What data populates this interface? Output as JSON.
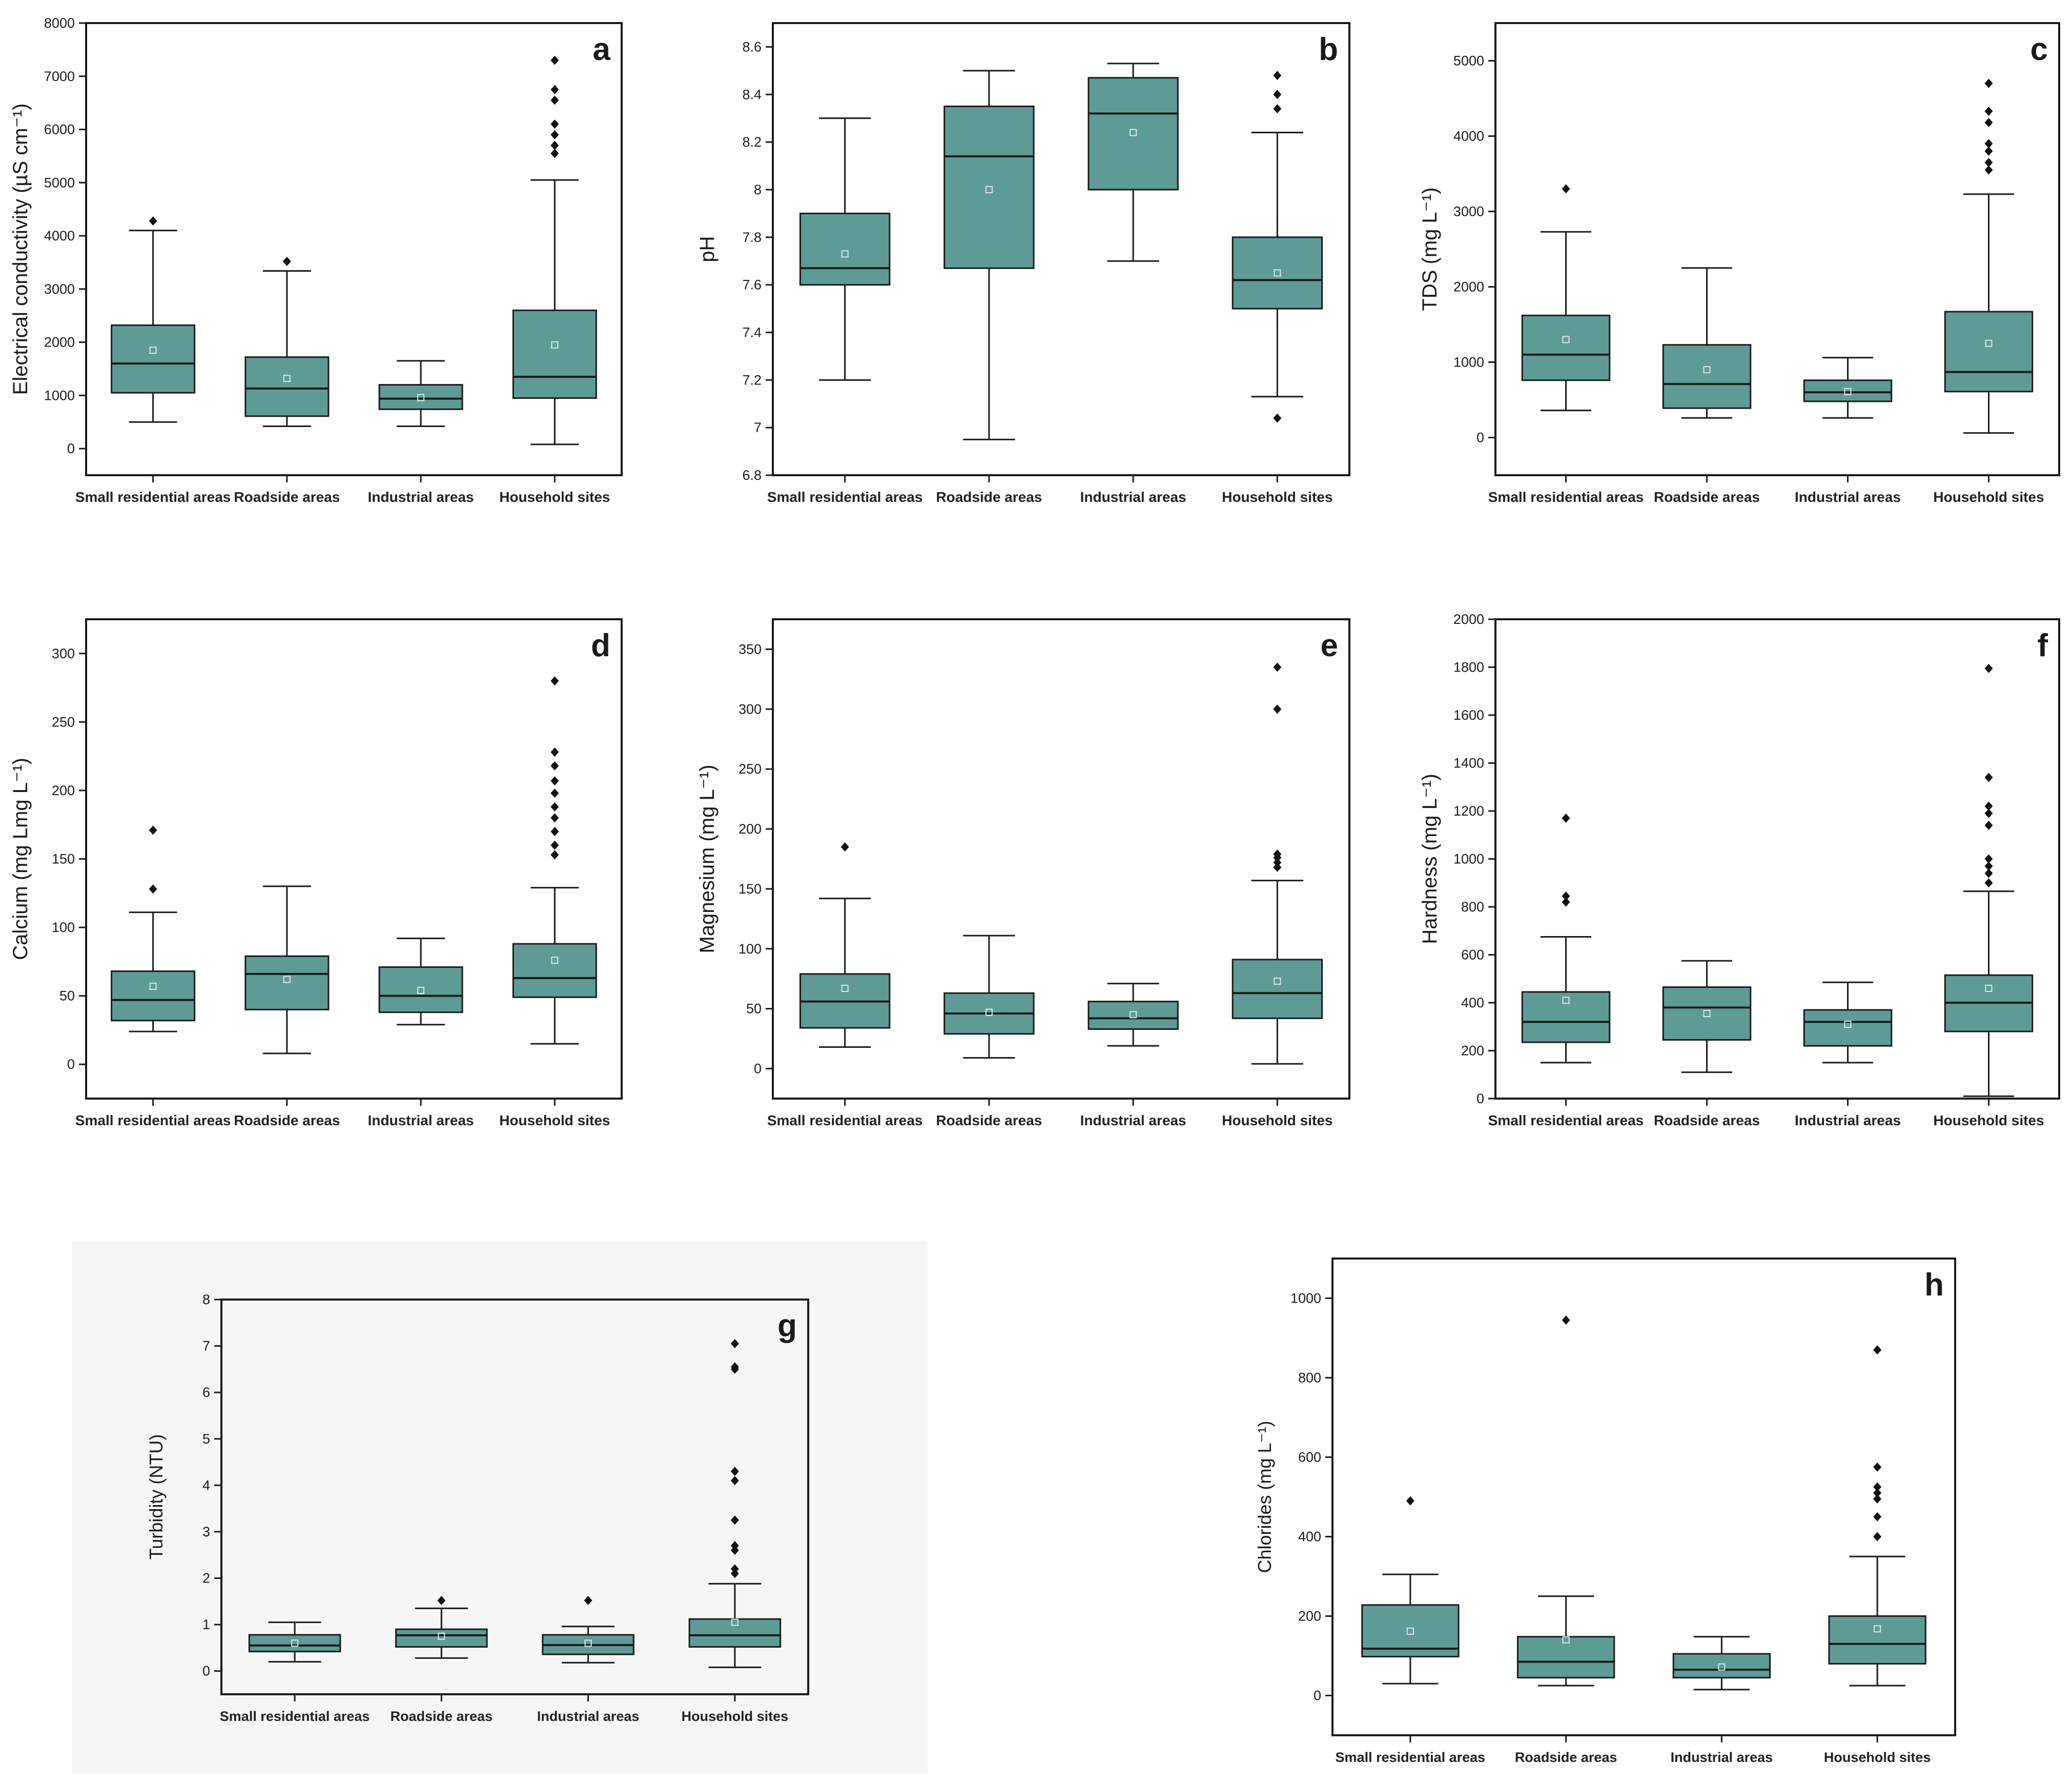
{
  "figure": {
    "categories": [
      "Small residential areas",
      "Roadside areas",
      "Industrial areas",
      "Household sites"
    ],
    "box_color": "#5f9b96",
    "outline_color": "#1a1a1a"
  },
  "chart_data": [
    {
      "type": "box",
      "panel_label": "a",
      "ylabel": "Electrical conductivity (µS cm⁻¹)",
      "ylim": [
        -500,
        8000
      ],
      "yticks": [
        0,
        1000,
        2000,
        3000,
        4000,
        5000,
        6000,
        7000,
        8000
      ],
      "categories": [
        "Small residential areas",
        "Roadside areas",
        "Industrial areas",
        "Household sites"
      ],
      "boxes": [
        {
          "whisker_low": 500,
          "q1": 1050,
          "median": 1600,
          "q3": 2320,
          "whisker_high": 4100,
          "mean": 1850,
          "outliers": [
            4280
          ]
        },
        {
          "whisker_low": 420,
          "q1": 610,
          "median": 1130,
          "q3": 1720,
          "whisker_high": 3340,
          "mean": 1320,
          "outliers": [
            3520
          ]
        },
        {
          "whisker_low": 420,
          "q1": 740,
          "median": 940,
          "q3": 1200,
          "whisker_high": 1650,
          "mean": 960,
          "outliers": []
        },
        {
          "whisker_low": 80,
          "q1": 950,
          "median": 1350,
          "q3": 2600,
          "whisker_high": 5050,
          "mean": 1950,
          "outliers": [
            5550,
            5700,
            5900,
            6100,
            6550,
            6750,
            7300
          ]
        }
      ]
    },
    {
      "type": "box",
      "panel_label": "b",
      "ylabel": "pH",
      "ylim": [
        6.8,
        8.7
      ],
      "yticks": [
        6.8,
        7.0,
        7.2,
        7.4,
        7.6,
        7.8,
        8.0,
        8.2,
        8.4,
        8.6
      ],
      "categories": [
        "Small residential areas",
        "Roadside areas",
        "Industrial areas",
        "Household sites"
      ],
      "boxes": [
        {
          "whisker_low": 7.2,
          "q1": 7.6,
          "median": 7.67,
          "q3": 7.9,
          "whisker_high": 8.3,
          "mean": 7.73,
          "outliers": []
        },
        {
          "whisker_low": 6.95,
          "q1": 7.67,
          "median": 8.14,
          "q3": 8.35,
          "whisker_high": 8.5,
          "mean": 8.0,
          "outliers": []
        },
        {
          "whisker_low": 7.7,
          "q1": 8.0,
          "median": 8.32,
          "q3": 8.47,
          "whisker_high": 8.53,
          "mean": 8.24,
          "outliers": []
        },
        {
          "whisker_low": 7.13,
          "q1": 7.5,
          "median": 7.62,
          "q3": 7.8,
          "whisker_high": 8.24,
          "mean": 7.65,
          "outliers": [
            7.04,
            8.34,
            8.4,
            8.48
          ]
        }
      ]
    },
    {
      "type": "box",
      "panel_label": "c",
      "ylabel": "TDS (mg L⁻¹)",
      "ylim": [
        -500,
        5500
      ],
      "yticks": [
        0,
        1000,
        2000,
        3000,
        4000,
        5000
      ],
      "categories": [
        "Small residential areas",
        "Roadside areas",
        "Industrial areas",
        "Household sites"
      ],
      "boxes": [
        {
          "whisker_low": 360,
          "q1": 760,
          "median": 1100,
          "q3": 1620,
          "whisker_high": 2730,
          "mean": 1300,
          "outliers": [
            3300
          ]
        },
        {
          "whisker_low": 260,
          "q1": 390,
          "median": 710,
          "q3": 1230,
          "whisker_high": 2250,
          "mean": 900,
          "outliers": []
        },
        {
          "whisker_low": 260,
          "q1": 480,
          "median": 600,
          "q3": 760,
          "whisker_high": 1060,
          "mean": 610,
          "outliers": []
        },
        {
          "whisker_low": 60,
          "q1": 610,
          "median": 870,
          "q3": 1670,
          "whisker_high": 3230,
          "mean": 1250,
          "outliers": [
            3550,
            3650,
            3800,
            3900,
            4180,
            4330,
            4700
          ]
        }
      ]
    },
    {
      "type": "box",
      "panel_label": "d",
      "ylabel": "Calcium (mg Lmg L⁻¹)",
      "ylim": [
        -25,
        325
      ],
      "yticks": [
        0,
        50,
        100,
        150,
        200,
        250,
        300
      ],
      "categories": [
        "Small residential areas",
        "Roadside areas",
        "Industrial areas",
        "Household sites"
      ],
      "boxes": [
        {
          "whisker_low": 24,
          "q1": 32,
          "median": 47,
          "q3": 68,
          "whisker_high": 111,
          "mean": 57,
          "outliers": [
            128,
            171
          ]
        },
        {
          "whisker_low": 8,
          "q1": 40,
          "median": 66,
          "q3": 79,
          "whisker_high": 130,
          "mean": 62,
          "outliers": []
        },
        {
          "whisker_low": 29,
          "q1": 38,
          "median": 50,
          "q3": 71,
          "whisker_high": 92,
          "mean": 54,
          "outliers": []
        },
        {
          "whisker_low": 15,
          "q1": 49,
          "median": 63,
          "q3": 88,
          "whisker_high": 129,
          "mean": 76,
          "outliers": [
            153,
            160,
            170,
            180,
            188,
            198,
            207,
            218,
            228,
            280
          ]
        }
      ]
    },
    {
      "type": "box",
      "panel_label": "e",
      "ylabel": "Magnesium (mg L⁻¹)",
      "ylim": [
        -25,
        375
      ],
      "yticks": [
        0,
        50,
        100,
        150,
        200,
        250,
        300,
        350
      ],
      "categories": [
        "Small residential areas",
        "Roadside areas",
        "Industrial areas",
        "Household sites"
      ],
      "boxes": [
        {
          "whisker_low": 18,
          "q1": 34,
          "median": 56,
          "q3": 79,
          "whisker_high": 142,
          "mean": 67,
          "outliers": [
            185
          ]
        },
        {
          "whisker_low": 9,
          "q1": 29,
          "median": 46,
          "q3": 63,
          "whisker_high": 111,
          "mean": 47,
          "outliers": []
        },
        {
          "whisker_low": 19,
          "q1": 33,
          "median": 42,
          "q3": 56,
          "whisker_high": 71,
          "mean": 45,
          "outliers": []
        },
        {
          "whisker_low": 4,
          "q1": 42,
          "median": 63,
          "q3": 91,
          "whisker_high": 157,
          "mean": 73,
          "outliers": [
            168,
            172,
            176,
            179,
            300,
            335
          ]
        }
      ]
    },
    {
      "type": "box",
      "panel_label": "f",
      "ylabel": "Hardness (mg L⁻¹)",
      "ylim": [
        0,
        2000
      ],
      "yticks": [
        0,
        200,
        400,
        600,
        800,
        1000,
        1200,
        1400,
        1600,
        1800,
        2000
      ],
      "categories": [
        "Small residential areas",
        "Roadside areas",
        "Industrial areas",
        "Household sites"
      ],
      "boxes": [
        {
          "whisker_low": 150,
          "q1": 235,
          "median": 320,
          "q3": 445,
          "whisker_high": 675,
          "mean": 410,
          "outliers": [
            820,
            845,
            1170
          ]
        },
        {
          "whisker_low": 110,
          "q1": 245,
          "median": 380,
          "q3": 465,
          "whisker_high": 575,
          "mean": 355,
          "outliers": []
        },
        {
          "whisker_low": 150,
          "q1": 220,
          "median": 320,
          "q3": 370,
          "whisker_high": 485,
          "mean": 310,
          "outliers": []
        },
        {
          "whisker_low": 10,
          "q1": 280,
          "median": 400,
          "q3": 515,
          "whisker_high": 865,
          "mean": 460,
          "outliers": [
            900,
            940,
            970,
            1000,
            1140,
            1190,
            1220,
            1340,
            1795
          ]
        }
      ]
    },
    {
      "type": "box",
      "panel_label": "g",
      "ylabel": "Turbidity (NTU)",
      "ylim": [
        -0.5,
        8
      ],
      "yticks": [
        0,
        1,
        2,
        3,
        4,
        5,
        6,
        7,
        8
      ],
      "categories": [
        "Small residential areas",
        "Roadside areas",
        "Industrial areas",
        "Household sites"
      ],
      "boxes": [
        {
          "whisker_low": 0.2,
          "q1": 0.42,
          "median": 0.55,
          "q3": 0.78,
          "whisker_high": 1.05,
          "mean": 0.6,
          "outliers": []
        },
        {
          "whisker_low": 0.28,
          "q1": 0.52,
          "median": 0.77,
          "q3": 0.9,
          "whisker_high": 1.35,
          "mean": 0.75,
          "outliers": [
            1.52
          ]
        },
        {
          "whisker_low": 0.18,
          "q1": 0.36,
          "median": 0.56,
          "q3": 0.78,
          "whisker_high": 0.96,
          "mean": 0.6,
          "outliers": [
            1.52
          ]
        },
        {
          "whisker_low": 0.08,
          "q1": 0.52,
          "median": 0.77,
          "q3": 1.12,
          "whisker_high": 1.88,
          "mean": 1.05,
          "outliers": [
            2.1,
            2.2,
            2.6,
            2.7,
            3.25,
            4.1,
            4.3,
            6.5,
            6.55,
            7.05
          ]
        }
      ]
    },
    {
      "type": "box",
      "panel_label": "h",
      "ylabel": "Chlorides (mg L⁻¹)",
      "ylim": [
        -100,
        1100
      ],
      "yticks": [
        0,
        200,
        400,
        600,
        800,
        1000
      ],
      "categories": [
        "Small residential areas",
        "Roadside areas",
        "Industrial areas",
        "Household sites"
      ],
      "boxes": [
        {
          "whisker_low": 30,
          "q1": 98,
          "median": 118,
          "q3": 228,
          "whisker_high": 305,
          "mean": 162,
          "outliers": [
            490
          ]
        },
        {
          "whisker_low": 25,
          "q1": 45,
          "median": 85,
          "q3": 148,
          "whisker_high": 250,
          "mean": 140,
          "outliers": [
            945
          ]
        },
        {
          "whisker_low": 15,
          "q1": 45,
          "median": 65,
          "q3": 105,
          "whisker_high": 148,
          "mean": 72,
          "outliers": []
        },
        {
          "whisker_low": 25,
          "q1": 80,
          "median": 130,
          "q3": 200,
          "whisker_high": 350,
          "mean": 168,
          "outliers": [
            400,
            450,
            495,
            510,
            525,
            575,
            870
          ]
        }
      ]
    }
  ]
}
